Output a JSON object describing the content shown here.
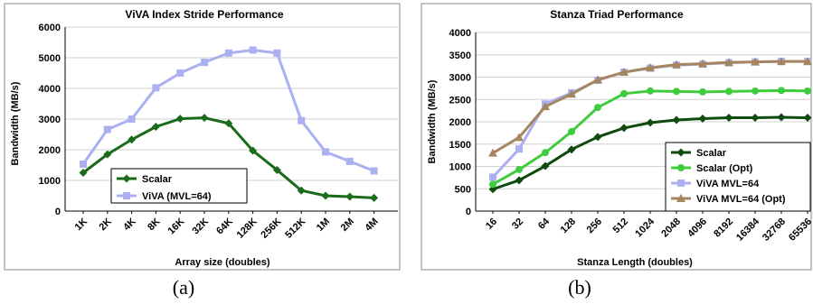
{
  "captions": {
    "a": "(a)",
    "b": "(b)"
  },
  "chart_data": [
    {
      "type": "line",
      "title": "ViVA Index Stride Performance",
      "xlabel": "Array size (doubles)",
      "ylabel": "Bandwidth (MB/s)",
      "ylim": [
        0,
        6000
      ],
      "yticks": [
        0,
        1000,
        2000,
        3000,
        4000,
        5000,
        6000
      ],
      "grid": true,
      "legend_position": "bottom-center",
      "categories": [
        "1K",
        "2K",
        "4K",
        "8K",
        "16K",
        "32K",
        "64K",
        "128K",
        "256K",
        "512K",
        "1M",
        "2M",
        "4M"
      ],
      "series": [
        {
          "name": "Scalar",
          "marker": "diamond",
          "color": "#1a6b1a",
          "values": [
            1250,
            1850,
            2330,
            2750,
            3010,
            3040,
            2860,
            1970,
            1340,
            670,
            500,
            470,
            430
          ]
        },
        {
          "name": "ViVA (MVL=64)",
          "marker": "square",
          "color": "#aab0f0",
          "values": [
            1530,
            2660,
            3000,
            4020,
            4500,
            4850,
            5150,
            5250,
            5150,
            2950,
            1930,
            1620,
            1310
          ]
        }
      ]
    },
    {
      "type": "line",
      "title": "Stanza Triad Performance",
      "xlabel": "Stanza Length (doubles)",
      "ylabel": "Bandwidth (MB/s)",
      "ylim": [
        0,
        4000
      ],
      "yticks": [
        0,
        500,
        1000,
        1500,
        2000,
        2500,
        3000,
        3500,
        4000
      ],
      "grid": true,
      "legend_position": "bottom-right",
      "categories": [
        "16",
        "32",
        "64",
        "128",
        "256",
        "512",
        "1024",
        "2048",
        "4096",
        "8192",
        "16384",
        "32768",
        "65536"
      ],
      "x_points": [
        16,
        23,
        32,
        45,
        64,
        91,
        128,
        181,
        256,
        362,
        512,
        724,
        1024,
        1448,
        2048,
        2896,
        4096,
        5793,
        8192,
        11585,
        16384,
        23170,
        32768,
        46341,
        65536,
        92682
      ],
      "series": [
        {
          "name": "Scalar",
          "marker": "diamond",
          "color": "#0f4a0f",
          "values": [
            490,
            690,
            1010,
            1380,
            1660,
            1860,
            1980,
            2040,
            2070,
            2090,
            2090,
            2100,
            2090
          ]
        },
        {
          "name": "Scalar (Opt)",
          "marker": "circle",
          "color": "#3fcc3f",
          "values": [
            600,
            930,
            1310,
            1780,
            2320,
            2630,
            2690,
            2680,
            2670,
            2680,
            2690,
            2700,
            2690
          ]
        },
        {
          "name": "ViVA MVL=64",
          "marker": "square",
          "color": "#aab0f0",
          "values": [
            760,
            1390,
            2400,
            2650,
            2930,
            3110,
            3200,
            3270,
            3290,
            3320,
            3340,
            3350,
            3350
          ]
        },
        {
          "name": "ViVA MVL=64 (Opt)",
          "marker": "triangle",
          "color": "#a68660",
          "values": [
            1300,
            1650,
            2340,
            2620,
            2940,
            3110,
            3210,
            3280,
            3300,
            3330,
            3340,
            3350,
            3350
          ]
        }
      ]
    }
  ]
}
